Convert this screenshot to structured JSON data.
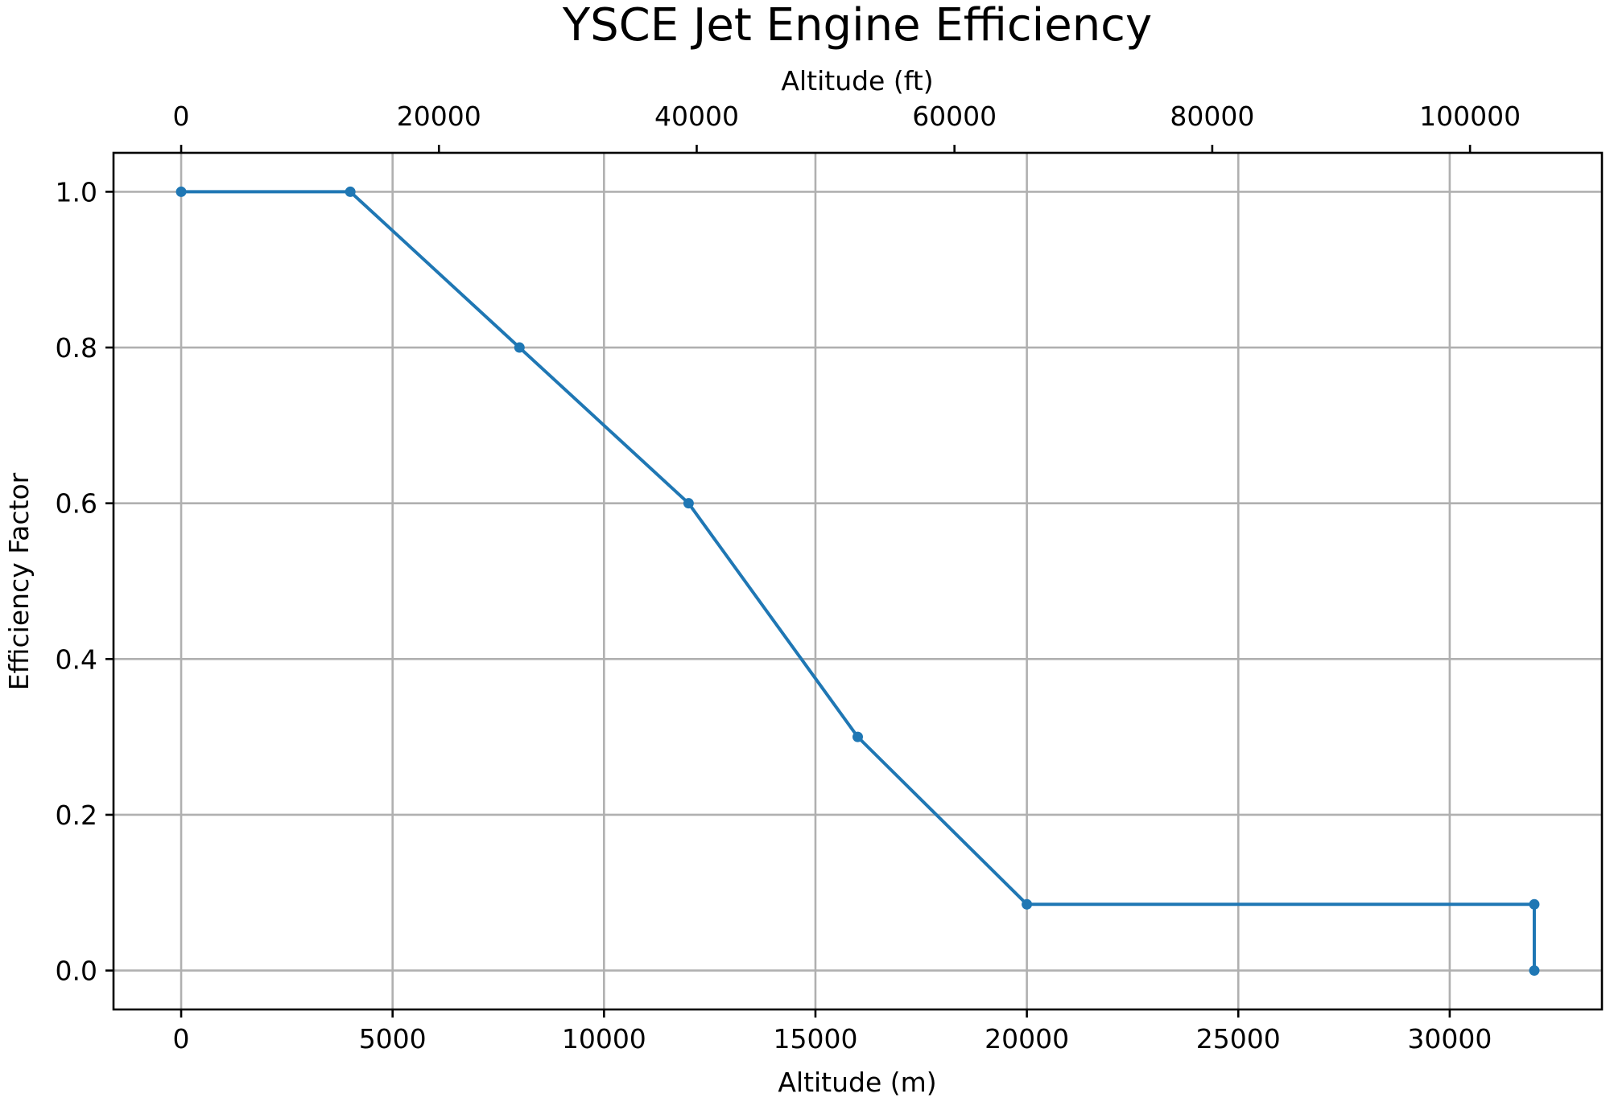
{
  "chart_data": {
    "type": "line",
    "title": "YSCE Jet Engine Efficiency",
    "xlabel": "Altitude (m)",
    "ylabel": "Efficiency Factor",
    "x2label": "Altitude (ft)",
    "xlim": [
      -1600,
      33600
    ],
    "ylim": [
      -0.05,
      1.05
    ],
    "x2_per_x": 3.28084,
    "xticks": [
      0,
      5000,
      10000,
      15000,
      20000,
      25000,
      30000
    ],
    "x2ticks": [
      0,
      20000,
      40000,
      60000,
      80000,
      100000
    ],
    "yticks": [
      0.0,
      0.2,
      0.4,
      0.6,
      0.8,
      1.0
    ],
    "xtick_labels": [
      "0",
      "5000",
      "10000",
      "15000",
      "20000",
      "25000",
      "30000"
    ],
    "x2tick_labels": [
      "0",
      "20000",
      "40000",
      "60000",
      "80000",
      "100000"
    ],
    "ytick_labels": [
      "0.0",
      "0.2",
      "0.4",
      "0.6",
      "0.8",
      "1.0"
    ],
    "grid": true,
    "series": [
      {
        "color": "#1f77b4",
        "x": [
          0,
          4000,
          8000,
          12000,
          16000,
          20000,
          32000,
          32000
        ],
        "y": [
          1.0,
          1.0,
          0.8,
          0.6,
          0.3,
          0.085,
          0.085,
          0.0
        ]
      }
    ]
  }
}
